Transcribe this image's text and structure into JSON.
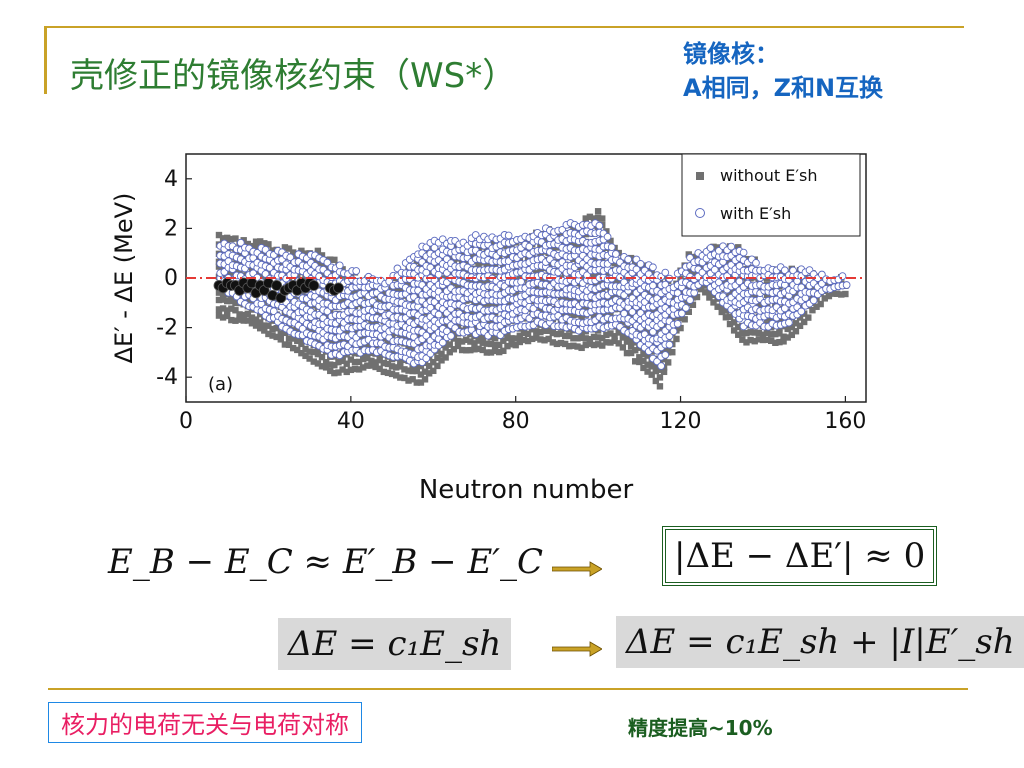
{
  "title": "壳修正的镜像核约束（WS*）",
  "note": {
    "line1": "镜像核：",
    "line2": "A相同，Z和N互换"
  },
  "equations": {
    "left1": "E_B − E_C ≈ E′_B − E′_C",
    "right1": "|ΔE − ΔE′| ≈ 0",
    "left2": "ΔE = c₁E_sh",
    "right2": "ΔE = c₁E_sh + |I|E′_sh"
  },
  "bottom": {
    "tag": "核力的电荷无关与电荷对称",
    "precision": "精度提高~10%"
  },
  "colors": {
    "title": "#2e7d32",
    "note": "#1565c0",
    "rule": "#c9a227",
    "tag_text": "#e91e63",
    "tag_border": "#1e88e5",
    "arrow": "#c9a227"
  },
  "chart_data": {
    "type": "scatter",
    "xlabel": "Neutron number",
    "ylabel": "ΔE′ - ΔE (MeV)",
    "xlim": [
      0,
      165
    ],
    "ylim": [
      -5,
      5
    ],
    "xticks": [
      0,
      40,
      80,
      120,
      160
    ],
    "yticks": [
      -4,
      -2,
      0,
      2,
      4
    ],
    "panel_label": "(a)",
    "reference_line": {
      "y": 0,
      "style": "dash-dot",
      "color": "#e53935"
    },
    "legend": {
      "position": "top-right",
      "entries": [
        "without E′sh",
        "with E′sh"
      ]
    },
    "series": [
      {
        "name": "without E′sh",
        "marker": "square",
        "color": "#707070",
        "band_lower": [
          [
            8,
            -1.5
          ],
          [
            15,
            -1.8
          ],
          [
            25,
            -2.7
          ],
          [
            35,
            -3.8
          ],
          [
            45,
            -3.6
          ],
          [
            57,
            -4.2
          ],
          [
            65,
            -2.8
          ],
          [
            75,
            -3.0
          ],
          [
            85,
            -2.4
          ],
          [
            95,
            -2.8
          ],
          [
            105,
            -2.6
          ],
          [
            115,
            -4.3
          ],
          [
            120,
            -2.0
          ],
          [
            125,
            -0.4
          ],
          [
            135,
            -2.5
          ],
          [
            145,
            -2.6
          ],
          [
            155,
            -0.8
          ],
          [
            160,
            -0.6
          ]
        ],
        "band_upper": [
          [
            8,
            2.0
          ],
          [
            12,
            1.8
          ],
          [
            18,
            1.5
          ],
          [
            25,
            1.2
          ],
          [
            32,
            1.1
          ],
          [
            40,
            0.3
          ],
          [
            48,
            -0.5
          ],
          [
            57,
            1.0
          ],
          [
            62,
            1.3
          ],
          [
            70,
            1.5
          ],
          [
            80,
            1.5
          ],
          [
            88,
            2.0
          ],
          [
            95,
            2.2
          ],
          [
            100,
            2.8
          ],
          [
            105,
            1.0
          ],
          [
            112,
            0.5
          ],
          [
            118,
            -0.2
          ],
          [
            122,
            1.0
          ],
          [
            126,
            1.2
          ],
          [
            132,
            1.5
          ],
          [
            140,
            0.5
          ],
          [
            150,
            0.4
          ],
          [
            158,
            0.0
          ]
        ]
      },
      {
        "name": "with E′sh",
        "marker": "circle-open",
        "color": "#5c6bc0",
        "band_lower": [
          [
            8,
            -0.5
          ],
          [
            15,
            -1.2
          ],
          [
            25,
            -2.2
          ],
          [
            35,
            -3.2
          ],
          [
            45,
            -3.0
          ],
          [
            57,
            -3.6
          ],
          [
            65,
            -2.2
          ],
          [
            75,
            -2.4
          ],
          [
            85,
            -1.9
          ],
          [
            95,
            -2.2
          ],
          [
            105,
            -2.0
          ],
          [
            115,
            -3.6
          ],
          [
            120,
            -1.5
          ],
          [
            125,
            -0.2
          ],
          [
            135,
            -2.0
          ],
          [
            145,
            -2.0
          ],
          [
            155,
            -0.5
          ],
          [
            160,
            -0.4
          ]
        ],
        "band_upper": [
          [
            8,
            1.4
          ],
          [
            12,
            1.3
          ],
          [
            18,
            1.1
          ],
          [
            25,
            0.9
          ],
          [
            32,
            0.8
          ],
          [
            40,
            0.2
          ],
          [
            48,
            -0.2
          ],
          [
            57,
            1.3
          ],
          [
            62,
            1.5
          ],
          [
            70,
            1.6
          ],
          [
            80,
            1.6
          ],
          [
            88,
            2.0
          ],
          [
            95,
            2.1
          ],
          [
            100,
            2.3
          ],
          [
            105,
            0.8
          ],
          [
            112,
            0.4
          ],
          [
            118,
            -0.1
          ],
          [
            122,
            0.8
          ],
          [
            126,
            1.0
          ],
          [
            132,
            1.3
          ],
          [
            140,
            0.4
          ],
          [
            150,
            0.3
          ],
          [
            158,
            -0.1
          ]
        ]
      },
      {
        "name": "",
        "marker": "circle-filled",
        "color": "#111111",
        "x": [
          8,
          9,
          10,
          11,
          12,
          13,
          14,
          15,
          16,
          17,
          18,
          19,
          20,
          21,
          22,
          23,
          24,
          25,
          26,
          27,
          28,
          29,
          30,
          31,
          35,
          36,
          37
        ],
        "y": [
          -0.3,
          -0.4,
          -0.2,
          -0.3,
          -0.3,
          -0.5,
          -0.2,
          -0.4,
          -0.2,
          -0.6,
          -0.3,
          -0.5,
          -0.2,
          -0.7,
          -0.3,
          -0.8,
          -0.5,
          -0.4,
          -0.3,
          -0.5,
          -0.2,
          -0.4,
          -0.2,
          -0.3,
          -0.4,
          -0.5,
          -0.4
        ]
      }
    ]
  }
}
